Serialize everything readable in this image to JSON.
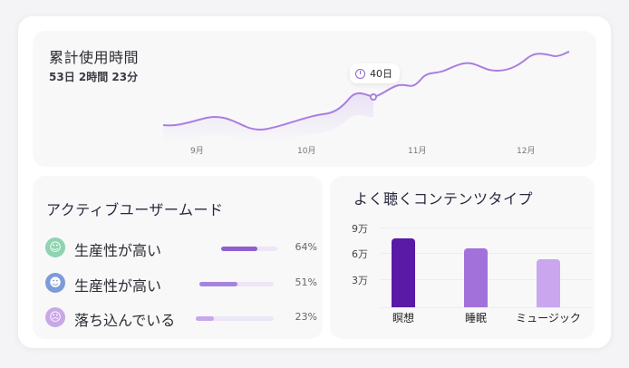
{
  "usage": {
    "title": "累計使用時間",
    "value": "53日 2時間 23分",
    "tooltip": "40日",
    "months": [
      "9月",
      "10月",
      "11月",
      "12月"
    ],
    "line_color": "#a97fe0"
  },
  "mood": {
    "title": "アクティブユーザームード",
    "items": [
      {
        "label": "生産性が高い",
        "percent_text": "64%",
        "fill_fraction": 0.64,
        "color": "#8f5fcf",
        "icon_bg": "#8fd3b0",
        "icon": "happy-face-icon"
      },
      {
        "label": "生産性が高い",
        "percent_text": "51%",
        "fill_fraction": 0.51,
        "color": "#a584de",
        "icon_bg": "#7d9bd8",
        "icon": "calm-face-icon"
      },
      {
        "label": "落ち込んでいる",
        "percent_text": "23%",
        "fill_fraction": 0.23,
        "color": "#c6a6ec",
        "icon_bg": "#c9a8e8",
        "icon": "sad-face-icon"
      }
    ]
  },
  "chart_data": {
    "type": "bar",
    "title": "よく聴くコンテンツタイプ",
    "categories": [
      "瞑想",
      "睡眠",
      "ミュージック"
    ],
    "values": [
      78000,
      66000,
      54000
    ],
    "colors": [
      "#5a1aa6",
      "#a371da",
      "#c9a6ee"
    ],
    "y_ticks": [
      "9万",
      "6万",
      "3万"
    ],
    "ylim": [
      0,
      90000
    ]
  }
}
